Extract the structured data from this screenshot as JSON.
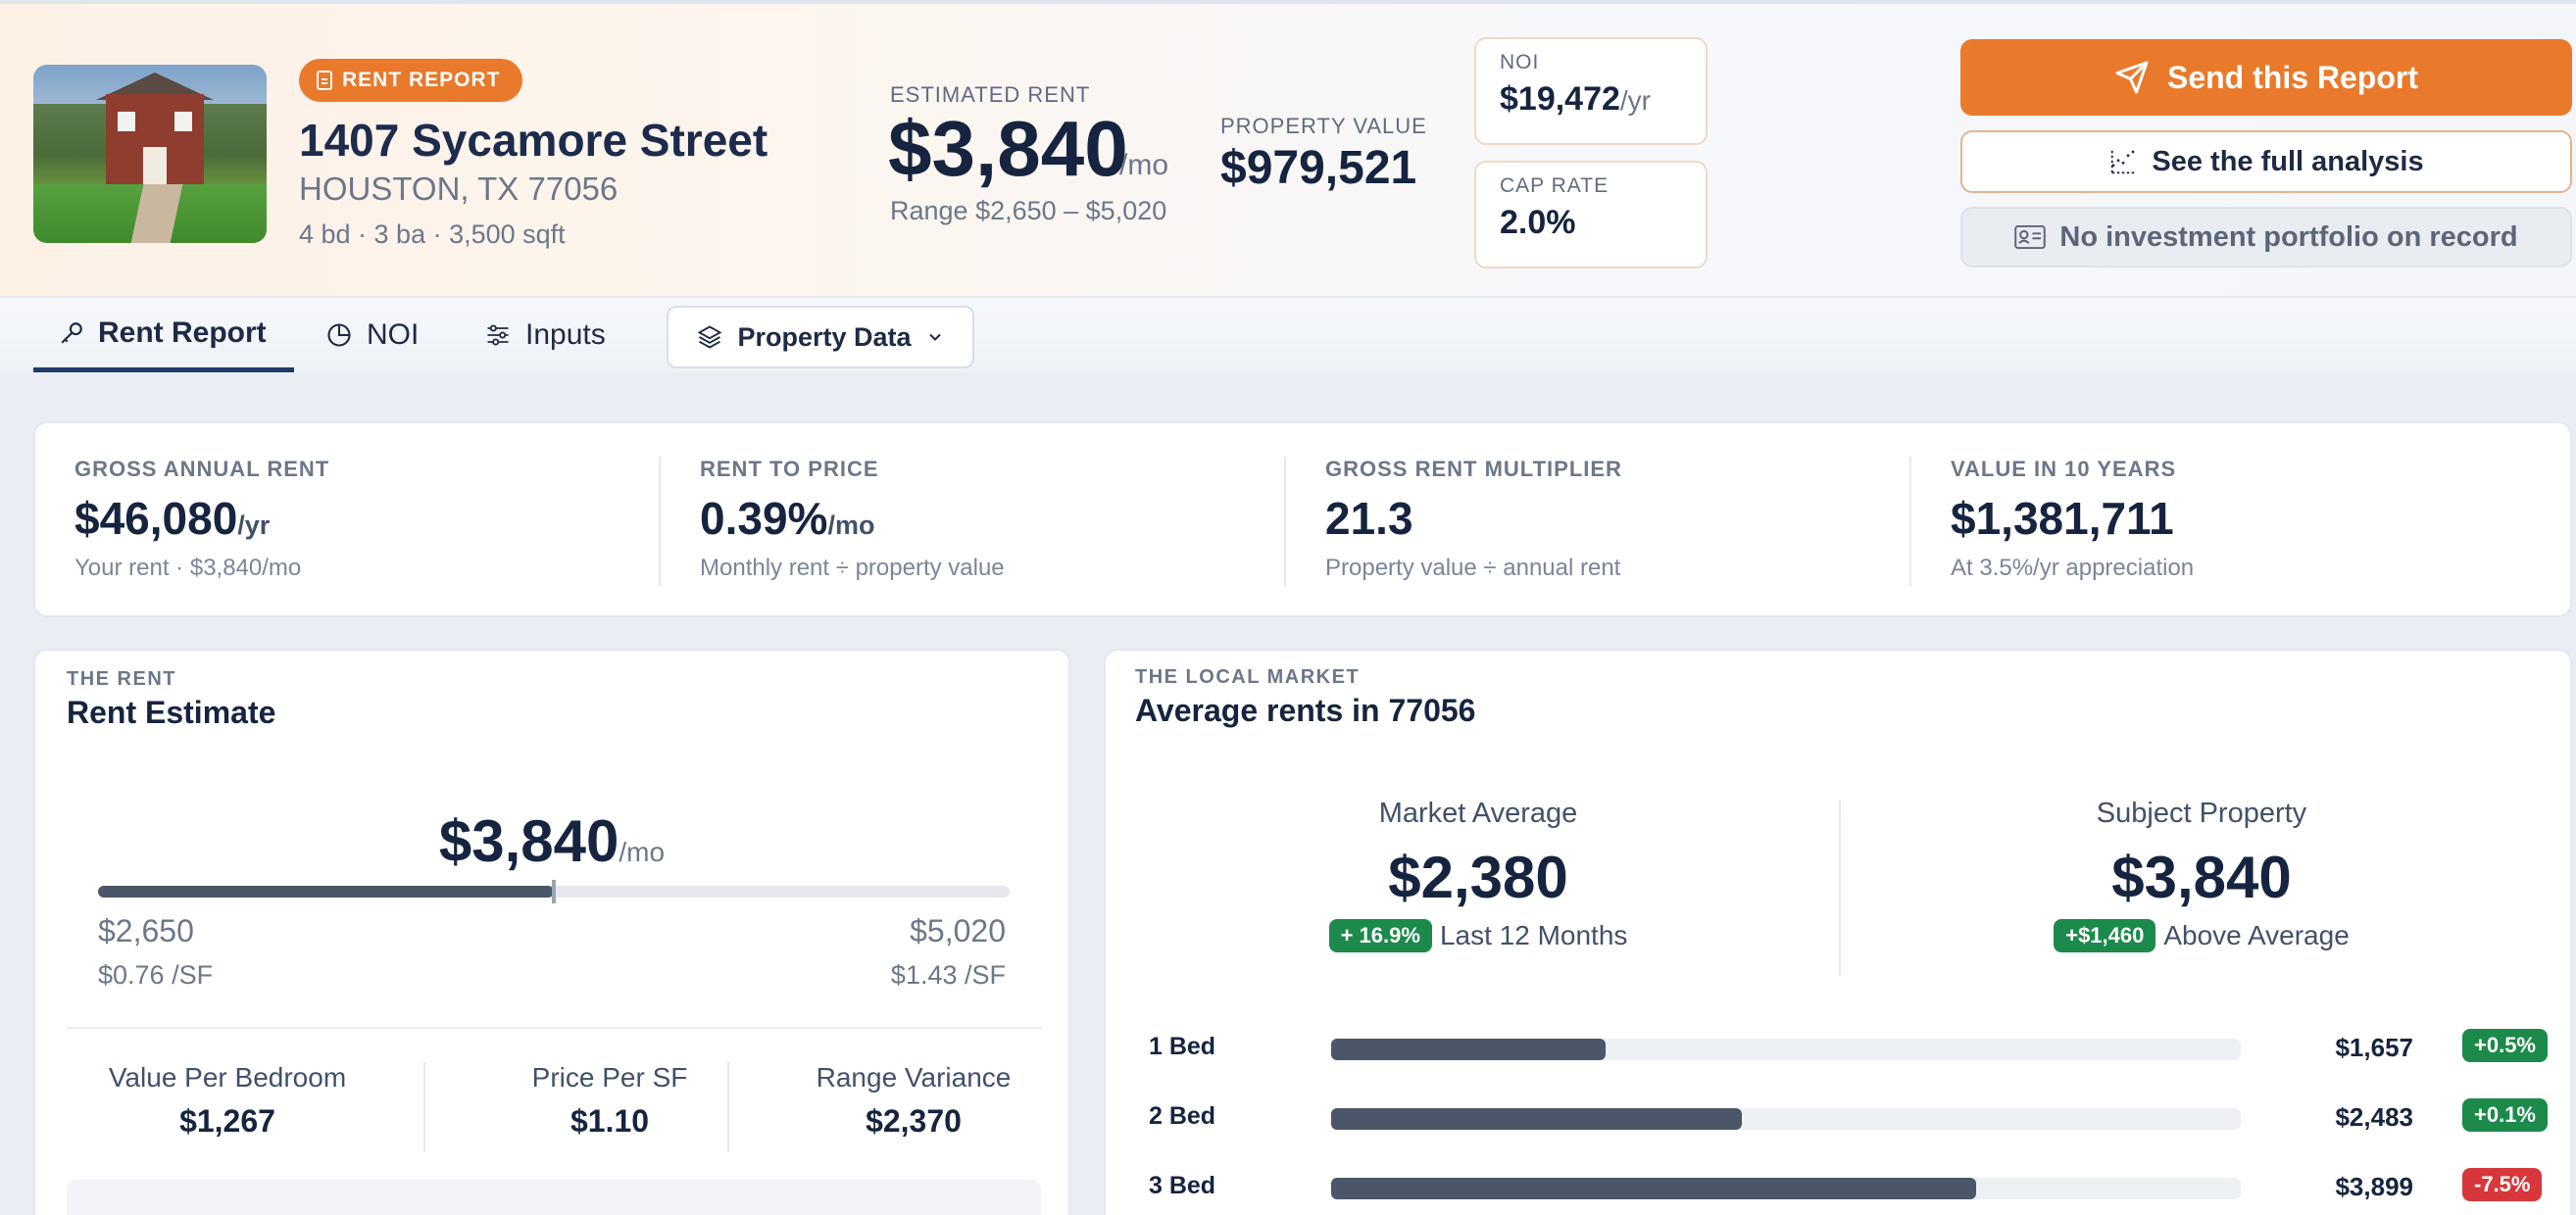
{
  "header": {
    "badge": "RENT REPORT",
    "address": "1407 Sycamore Street",
    "city": "HOUSTON, TX 77056",
    "specs": "4 bd · 3 ba · 3,500 sqft",
    "estimated_rent_label": "ESTIMATED RENT",
    "estimated_rent": "$3,840",
    "estimated_rent_unit": "/mo",
    "range": "Range $2,650 – $5,020",
    "property_value_label": "PROPERTY VALUE",
    "property_value": "$979,521",
    "noi_label": "NOI",
    "noi_value": "$19,472",
    "noi_unit": "/yr",
    "cap_rate_label": "CAP RATE",
    "cap_rate_value": "2.0%"
  },
  "actions": {
    "send": "Send this Report",
    "analysis": "See the full analysis",
    "portfolio": "No investment portfolio on record"
  },
  "tabs": {
    "rent_report": "Rent Report",
    "noi": "NOI",
    "inputs": "Inputs",
    "property_data": "Property Data"
  },
  "kpis": [
    {
      "label": "GROSS ANNUAL RENT",
      "value": "$46,080",
      "unit": "/yr",
      "sub": "Your rent · $3,840/mo"
    },
    {
      "label": "RENT TO PRICE",
      "value": "0.39%",
      "unit": "/mo",
      "sub": "Monthly rent ÷ property value"
    },
    {
      "label": "GROSS RENT MULTIPLIER",
      "value": "21.3",
      "unit": "",
      "sub": "Property value ÷ annual rent"
    },
    {
      "label": "VALUE IN 10 YEARS",
      "value": "$1,381,711",
      "unit": "",
      "sub": "At 3.5%/yr appreciation"
    }
  ],
  "rent_panel": {
    "eyebrow": "THE RENT",
    "title": "Rent Estimate",
    "estimate": "$3,840",
    "unit": "/mo",
    "position_fraction": 0.5,
    "low": "$2,650",
    "high": "$5,020",
    "low_sf": "$0.76 /SF",
    "high_sf": "$1.43 /SF",
    "stats": [
      {
        "label": "Value Per Bedroom",
        "value": "$1,267"
      },
      {
        "label": "Price Per SF",
        "value": "$1.10"
      },
      {
        "label": "Range Variance",
        "value": "$2,370"
      }
    ]
  },
  "market_panel": {
    "eyebrow": "THE LOCAL MARKET",
    "title": "Average rents in 77056",
    "market_label": "Market Average",
    "market_value": "$2,380",
    "market_pill": "+ 16.9%",
    "market_note": "Last 12 Months",
    "subject_label": "Subject Property",
    "subject_value": "$3,840",
    "subject_pill": "+$1,460",
    "subject_note": "Above Average",
    "beds": [
      {
        "label": "1 Bed",
        "value": "$1,657",
        "amount": 1657,
        "change": "+0.5%",
        "trend": "up"
      },
      {
        "label": "2 Bed",
        "value": "$2,483",
        "amount": 2483,
        "change": "+0.1%",
        "trend": "up"
      },
      {
        "label": "3 Bed",
        "value": "$3,899",
        "amount": 3899,
        "change": "-7.5%",
        "trend": "down"
      }
    ],
    "bar_max": 5500
  },
  "colors": {
    "accent": "#ea7a2b",
    "navy": "#16243f",
    "green": "#1c8a4a",
    "red": "#d7373b"
  }
}
